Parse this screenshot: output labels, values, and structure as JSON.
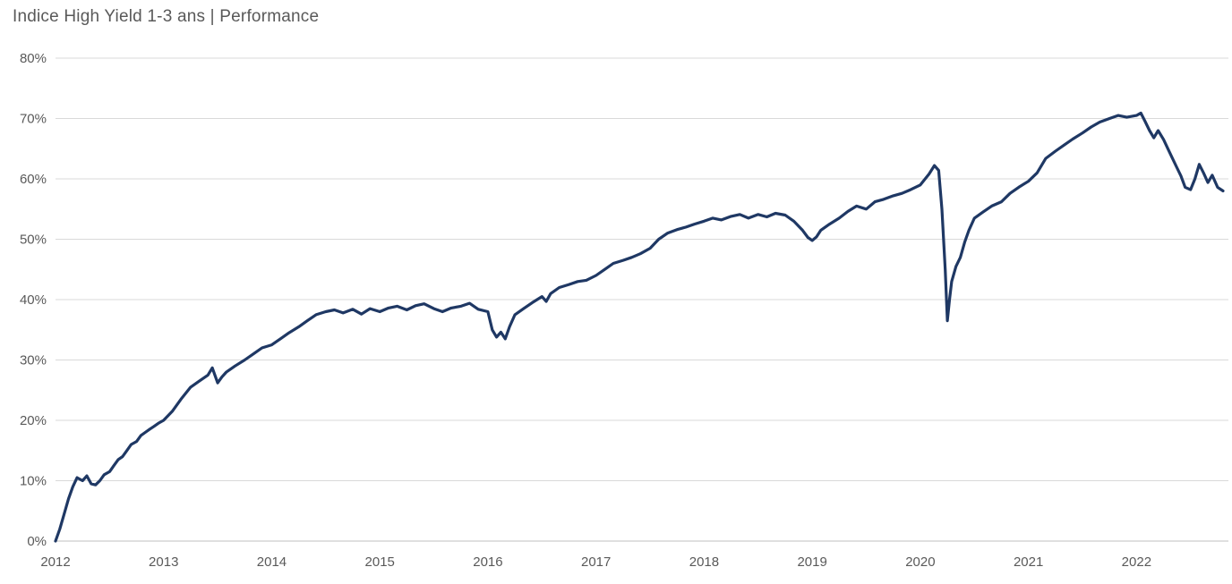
{
  "page": {
    "title": "Indice High Yield 1-3 ans | Performance"
  },
  "chart_data": {
    "type": "line",
    "title": "Indice High Yield 1-3 ans | Performance",
    "xlabel": "",
    "ylabel": "",
    "xlim": [
      2012,
      2022.85
    ],
    "ylim": [
      0,
      80
    ],
    "xticks": [
      2012,
      2013,
      2014,
      2015,
      2016,
      2017,
      2018,
      2019,
      2020,
      2021,
      2022
    ],
    "yticks": [
      0,
      10,
      20,
      30,
      40,
      50,
      60,
      70,
      80
    ],
    "ytick_suffix": "%",
    "grid": "horizontal",
    "legend": "none",
    "line_color": "#1F3864",
    "grid_color": "#D9D9D9",
    "axis_line_color": "#BFBFBF",
    "text_color": "#595959",
    "background": "#FFFFFF",
    "series": [
      {
        "name": "Indice High Yield 1-3 ans Performance",
        "x": [
          2012.0,
          2012.04,
          2012.08,
          2012.12,
          2012.16,
          2012.2,
          2012.25,
          2012.29,
          2012.33,
          2012.37,
          2012.41,
          2012.45,
          2012.5,
          2012.54,
          2012.58,
          2012.62,
          2012.66,
          2012.7,
          2012.75,
          2012.79,
          2012.83,
          2012.87,
          2012.91,
          2012.95,
          2013.0,
          2013.08,
          2013.16,
          2013.25,
          2013.33,
          2013.41,
          2013.45,
          2013.5,
          2013.54,
          2013.58,
          2013.66,
          2013.75,
          2013.83,
          2013.91,
          2014.0,
          2014.08,
          2014.16,
          2014.25,
          2014.33,
          2014.41,
          2014.5,
          2014.58,
          2014.66,
          2014.75,
          2014.83,
          2014.91,
          2015.0,
          2015.08,
          2015.16,
          2015.25,
          2015.33,
          2015.41,
          2015.5,
          2015.58,
          2015.66,
          2015.75,
          2015.83,
          2015.91,
          2016.0,
          2016.04,
          2016.08,
          2016.12,
          2016.16,
          2016.2,
          2016.25,
          2016.33,
          2016.41,
          2016.5,
          2016.54,
          2016.58,
          2016.66,
          2016.75,
          2016.83,
          2016.91,
          2017.0,
          2017.08,
          2017.16,
          2017.25,
          2017.33,
          2017.41,
          2017.5,
          2017.58,
          2017.66,
          2017.75,
          2017.83,
          2017.91,
          2018.0,
          2018.08,
          2018.16,
          2018.25,
          2018.33,
          2018.41,
          2018.5,
          2018.58,
          2018.66,
          2018.75,
          2018.83,
          2018.91,
          2018.96,
          2019.0,
          2019.04,
          2019.08,
          2019.16,
          2019.25,
          2019.33,
          2019.41,
          2019.5,
          2019.58,
          2019.66,
          2019.75,
          2019.83,
          2019.91,
          2020.0,
          2020.08,
          2020.13,
          2020.17,
          2020.2,
          2020.23,
          2020.25,
          2020.27,
          2020.29,
          2020.33,
          2020.37,
          2020.41,
          2020.45,
          2020.5,
          2020.58,
          2020.66,
          2020.75,
          2020.83,
          2020.91,
          2021.0,
          2021.08,
          2021.16,
          2021.25,
          2021.33,
          2021.41,
          2021.5,
          2021.58,
          2021.66,
          2021.75,
          2021.83,
          2021.91,
          2022.0,
          2022.04,
          2022.08,
          2022.12,
          2022.16,
          2022.2,
          2022.25,
          2022.29,
          2022.33,
          2022.37,
          2022.41,
          2022.45,
          2022.5,
          2022.54,
          2022.58,
          2022.62,
          2022.66,
          2022.7,
          2022.75,
          2022.8
        ],
        "y": [
          0,
          2,
          4.5,
          7,
          9,
          10.5,
          10,
          10.8,
          9.5,
          9.3,
          10,
          11,
          11.5,
          12.5,
          13.5,
          14,
          15,
          16,
          16.5,
          17.5,
          18,
          18.5,
          19,
          19.5,
          20,
          21.5,
          23.5,
          25.5,
          26.5,
          27.5,
          28.7,
          26.2,
          27.2,
          28,
          29,
          30,
          31,
          32,
          32.5,
          33.5,
          34.5,
          35.5,
          36.5,
          37.5,
          38,
          38.3,
          37.8,
          38.4,
          37.6,
          38.5,
          38,
          38.6,
          38.9,
          38.3,
          39,
          39.3,
          38.5,
          38,
          38.6,
          38.9,
          39.4,
          38.4,
          38,
          35,
          33.8,
          34.6,
          33.5,
          35.5,
          37.5,
          38.5,
          39.5,
          40.5,
          39.7,
          41,
          42,
          42.5,
          43,
          43.2,
          44,
          45,
          46,
          46.5,
          47,
          47.6,
          48.5,
          50,
          51,
          51.6,
          52,
          52.5,
          53,
          53.5,
          53.2,
          53.8,
          54.1,
          53.5,
          54.1,
          53.7,
          54.3,
          54,
          53,
          51.5,
          50.3,
          49.8,
          50.4,
          51.5,
          52.5,
          53.5,
          54.6,
          55.5,
          55,
          56.2,
          56.6,
          57.2,
          57.6,
          58.2,
          59,
          60.8,
          62.2,
          61.4,
          55,
          45,
          36.5,
          40,
          43,
          45.5,
          47,
          49.5,
          51.5,
          53.5,
          54.5,
          55.5,
          56.2,
          57.6,
          58.6,
          59.6,
          61,
          63.4,
          64.6,
          65.6,
          66.6,
          67.6,
          68.6,
          69.4,
          70,
          70.5,
          70.2,
          70.5,
          70.9,
          69.5,
          68,
          66.8,
          68,
          66.5,
          65,
          63.5,
          62,
          60.5,
          58.6,
          58.2,
          60,
          62.4,
          61,
          59.4,
          60.6,
          58.6,
          58
        ]
      }
    ]
  }
}
